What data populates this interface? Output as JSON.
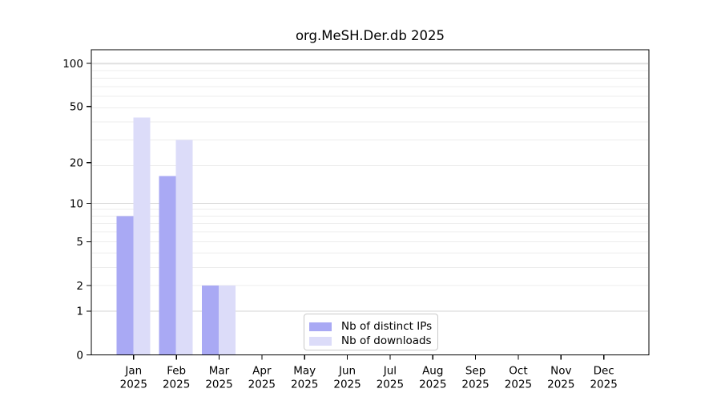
{
  "chart_data": {
    "type": "bar",
    "title": "org.MeSH.Der.db 2025",
    "categories": [
      "Jan",
      "Feb",
      "Mar",
      "Apr",
      "May",
      "Jun",
      "Jul",
      "Aug",
      "Sep",
      "Oct",
      "Nov",
      "Dec"
    ],
    "category_year": "2025",
    "series": [
      {
        "name": "Nb of distinct IPs",
        "color": "#a9a9f4",
        "values": [
          8,
          16,
          2,
          0,
          0,
          0,
          0,
          0,
          0,
          0,
          0,
          0
        ]
      },
      {
        "name": "Nb of downloads",
        "color": "#dcdcf9",
        "values": [
          42,
          29,
          2,
          0,
          0,
          0,
          0,
          0,
          0,
          0,
          0,
          0
        ]
      }
    ],
    "y_ticks": [
      0,
      1,
      2,
      5,
      10,
      20,
      50,
      100
    ],
    "ylim": [
      0,
      110
    ],
    "y_scale": "log10(value+1)",
    "xlabel": "",
    "ylabel": "",
    "grid": "horizontal",
    "legend_position": "bottom-center-inside",
    "colors": {
      "axis": "#000000",
      "text": "#000000",
      "grid_minor": "#ececec",
      "grid_major": "#d5d5d5",
      "legend_border": "#c9c9c9",
      "background": "#ffffff"
    }
  }
}
